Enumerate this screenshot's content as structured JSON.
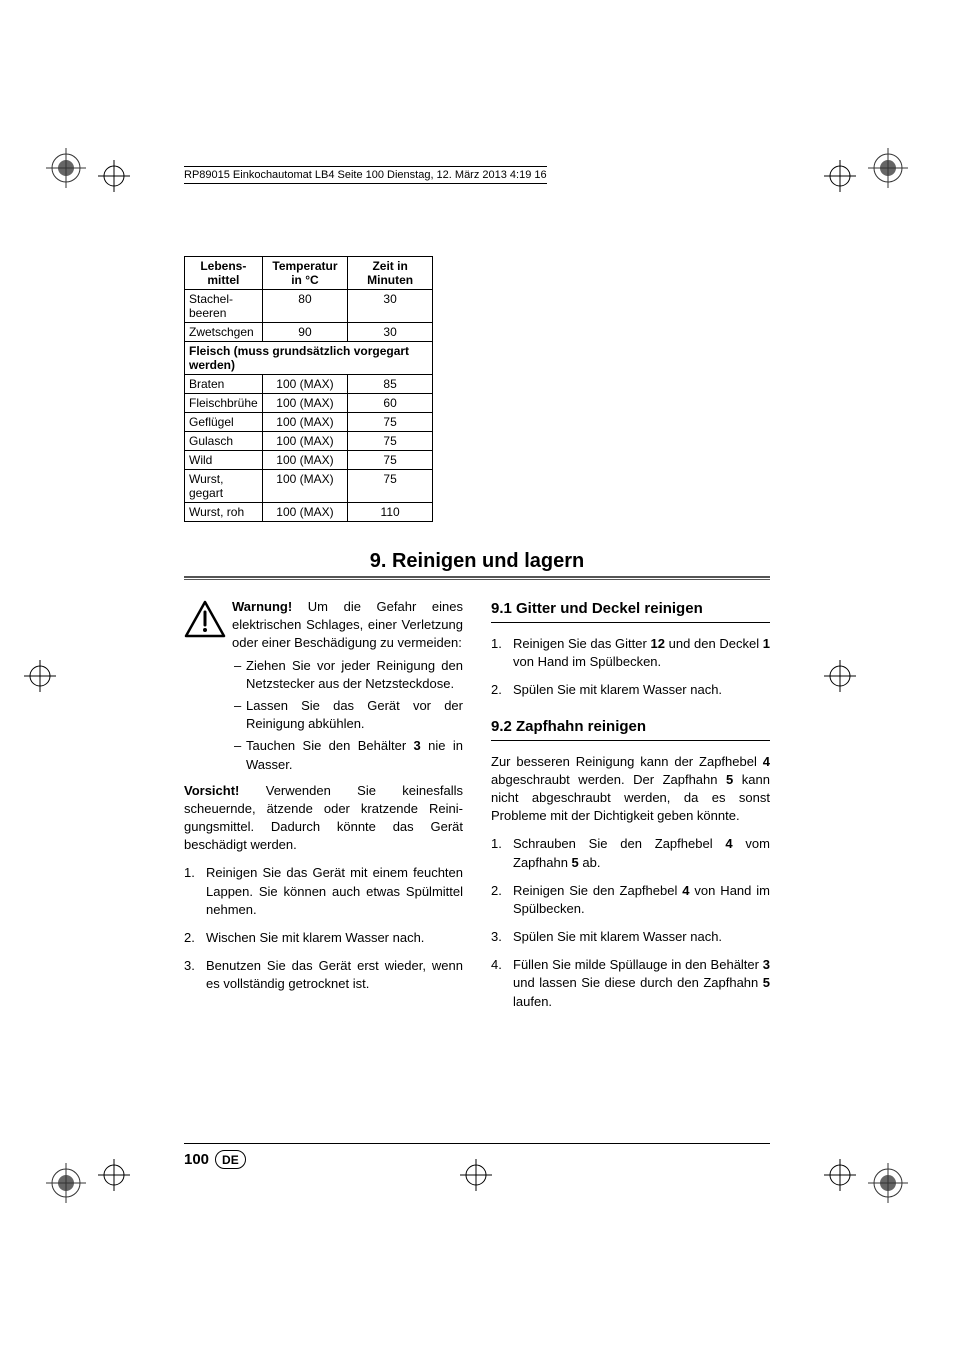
{
  "header": {
    "text": "RP89015 Einkochautomat LB4  Seite 100  Dienstag, 12. März 2013  4:19 16"
  },
  "table": {
    "columns": [
      "Lebens-\nmittel",
      "Temperatur\nin °C",
      "Zeit in\nMinuten"
    ],
    "rows": [
      {
        "c1": "Stachel-\nbeeren",
        "c2": "80",
        "c3": "30"
      },
      {
        "c1": "Zwetschgen",
        "c2": "90",
        "c3": "30"
      }
    ],
    "section_header": "Fleisch (muss grundsätzlich vorgegart werden)",
    "rows2": [
      {
        "c1": "Braten",
        "c2": "100 (MAX)",
        "c3": "85"
      },
      {
        "c1": "Fleischbrühe",
        "c2": "100 (MAX)",
        "c3": "60"
      },
      {
        "c1": "Geflügel",
        "c2": "100 (MAX)",
        "c3": "75"
      },
      {
        "c1": "Gulasch",
        "c2": "100 (MAX)",
        "c3": "75"
      },
      {
        "c1": "Wild",
        "c2": "100 (MAX)",
        "c3": "75"
      },
      {
        "c1": "Wurst, gegart",
        "c2": "100 (MAX)",
        "c3": "75"
      },
      {
        "c1": "Wurst, roh",
        "c2": "100 (MAX)",
        "c3": "110"
      }
    ]
  },
  "section": {
    "title": "9. Reinigen und lagern"
  },
  "left": {
    "warning_label": "Warnung!",
    "warning_text": " Um die Gefahr eines elektrischen Schlages, einer Ver­letzung oder einer Beschädigung zu vermeiden:",
    "bullets": [
      "Ziehen Sie vor jeder Reinigung den Netzstecker aus der Netzsteckdose.",
      "Lassen Sie das Gerät vor der Reinigung abkühlen.",
      "Tauchen Sie den Behälter 3 nie in Wasser."
    ],
    "caution_label": "Vorsicht!",
    "caution_text": " Verwenden Sie keinesfalls scheuernde, ätzende oder kratzende Reini­gungsmittel. Dadurch könnte das Gerät beschädigt werden.",
    "steps": [
      "Reinigen Sie das Gerät mit einem feuch­ten Lappen. Sie können auch etwas Spülmittel nehmen.",
      "Wischen Sie mit klarem Wasser nach.",
      "Benutzen Sie das Gerät erst wieder, wenn es vollständig getrocknet ist."
    ]
  },
  "right": {
    "sub1": {
      "title": "9.1 Gitter und Deckel reinigen",
      "steps": [
        {
          "pre": "Reinigen Sie das Gitter ",
          "b1": "12",
          "mid": " und den Deckel ",
          "b2": "1",
          "post": " von Hand im Spülbecken."
        },
        {
          "pre": "Spülen Sie mit klarem Wasser nach.",
          "b1": "",
          "mid": "",
          "b2": "",
          "post": ""
        }
      ]
    },
    "sub2": {
      "title": "9.2 Zapfhahn reinigen",
      "intro_pre": "Zur besseren Reinigung kann der Zapfhebel ",
      "intro_b1": "4",
      "intro_mid1": " abgeschraubt werden. Der Zapfhahn ",
      "intro_b2": "5",
      "intro_post": " kann nicht abgeschraubt wer­den, da es sonst Probleme mit der Dichtigkeit geben könnte.",
      "steps": [
        {
          "pre": "Schrauben Sie den Zapfhebel ",
          "b1": "4",
          "mid": " vom Zapfhahn ",
          "b2": "5",
          "post": " ab."
        },
        {
          "pre": "Reinigen Sie den Zapfhebel ",
          "b1": "4",
          "mid": " von Hand im Spülbecken.",
          "b2": "",
          "post": ""
        },
        {
          "pre": "Spülen Sie mit klarem Wasser nach.",
          "b1": "",
          "mid": "",
          "b2": "",
          "post": ""
        },
        {
          "pre": "Füllen Sie milde Spüllauge in den Behäl­ter ",
          "b1": "3",
          "mid": " und lassen Sie diese durch den Zapfhahn ",
          "b2": "5",
          "post": " laufen."
        }
      ]
    }
  },
  "footer": {
    "page": "100",
    "lang": "DE"
  },
  "colors": {
    "text": "#000000",
    "rule": "#555555",
    "background": "#ffffff"
  }
}
